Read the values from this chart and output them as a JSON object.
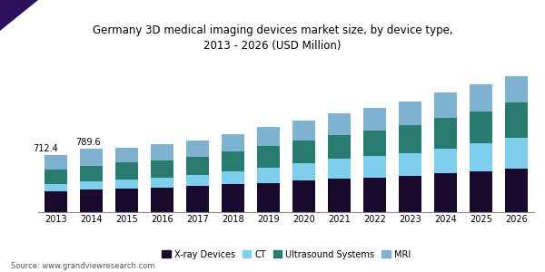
{
  "title": "Germany 3D medical imaging devices market size, by device type,\n2013 - 2026 (USD Million)",
  "years": [
    2013,
    2014,
    2015,
    2016,
    2017,
    2018,
    2019,
    2020,
    2021,
    2022,
    2023,
    2024,
    2025,
    2026
  ],
  "xray": [
    265,
    285,
    300,
    310,
    328,
    348,
    368,
    392,
    415,
    435,
    458,
    488,
    515,
    542
  ],
  "ct": [
    90,
    100,
    110,
    122,
    140,
    158,
    192,
    222,
    252,
    268,
    282,
    308,
    342,
    388
  ],
  "ultrasound": [
    182,
    198,
    208,
    218,
    228,
    248,
    268,
    280,
    300,
    320,
    350,
    378,
    405,
    440
  ],
  "mri": [
    175,
    207,
    190,
    200,
    205,
    218,
    232,
    248,
    263,
    282,
    298,
    318,
    338,
    362
  ],
  "annotations": {
    "2013": "712.4",
    "2014": "789.6"
  },
  "colors": {
    "xray": "#1a0a2e",
    "ct": "#7ecfed",
    "ultrasound": "#2a7b6f",
    "mri": "#7fb2d0"
  },
  "legend_labels": [
    "X-ray Devices",
    "CT",
    "Ultrasound Systems",
    "MRI"
  ],
  "source": "Source: www.grandviewresearch.com",
  "title_fontsize": 8.5,
  "bar_width": 0.65,
  "background_color": "#ffffff",
  "title_bg": "#e8e8f2",
  "ylim": [
    0,
    1700
  ],
  "figsize": [
    6.0,
    3.0
  ],
  "dpi": 100
}
